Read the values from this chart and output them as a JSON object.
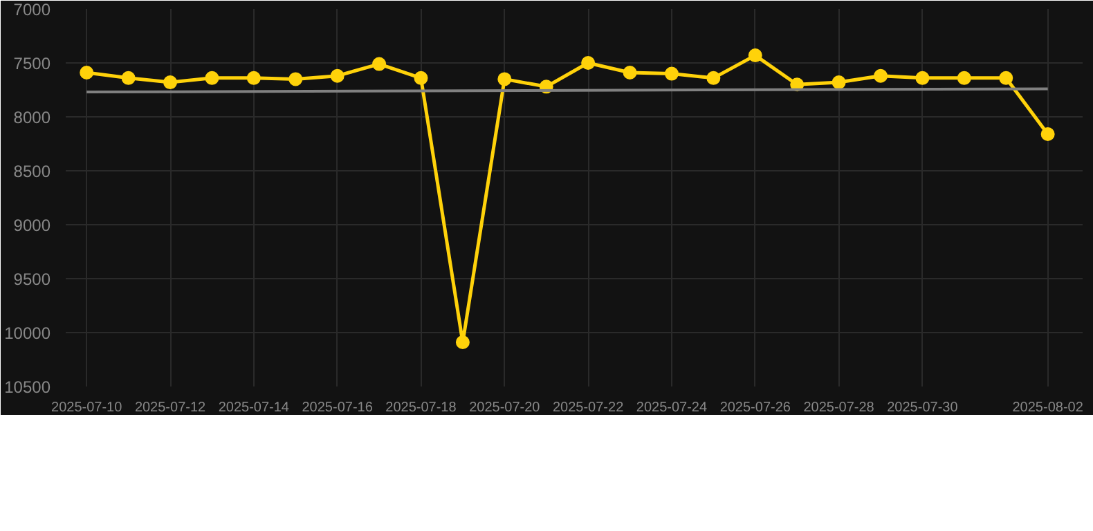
{
  "chart_data": {
    "type": "line",
    "x": [
      "2025-07-10",
      "2025-07-11",
      "2025-07-12",
      "2025-07-13",
      "2025-07-14",
      "2025-07-15",
      "2025-07-16",
      "2025-07-17",
      "2025-07-18",
      "2025-07-19",
      "2025-07-20",
      "2025-07-21",
      "2025-07-22",
      "2025-07-23",
      "2025-07-24",
      "2025-07-25",
      "2025-07-26",
      "2025-07-27",
      "2025-07-28",
      "2025-07-29",
      "2025-07-30",
      "2025-07-31",
      "2025-08-01",
      "2025-08-02"
    ],
    "series": [
      {
        "color": "#ffd20a",
        "values": [
          7590,
          7640,
          7680,
          7640,
          7640,
          7650,
          7620,
          7510,
          7640,
          10090,
          7650,
          7720,
          7500,
          7590,
          7600,
          7640,
          7430,
          7700,
          7680,
          7620,
          7640,
          7640,
          7640,
          8160
        ]
      },
      {
        "type": "line",
        "color": "#808080",
        "marker": "none",
        "x": [
          "2025-07-10",
          "2025-08-02"
        ],
        "values": [
          7770,
          7740
        ]
      }
    ],
    "marker": "circle",
    "line_style": "solid",
    "grid": true,
    "xlim": [
      "2025-07-09T12:00",
      "2025-08-02T20:00"
    ],
    "xticks": [
      "2025-07-10",
      "2025-07-12",
      "2025-07-14",
      "2025-07-16",
      "2025-07-18",
      "2025-07-20",
      "2025-07-22",
      "2025-07-24",
      "2025-07-26",
      "2025-07-28",
      "2025-07-30",
      "2025-08-02"
    ],
    "ylim": [
      10500,
      7000
    ],
    "yticks": [
      7000,
      7500,
      8000,
      8500,
      9000,
      9500,
      10000,
      10500
    ]
  }
}
